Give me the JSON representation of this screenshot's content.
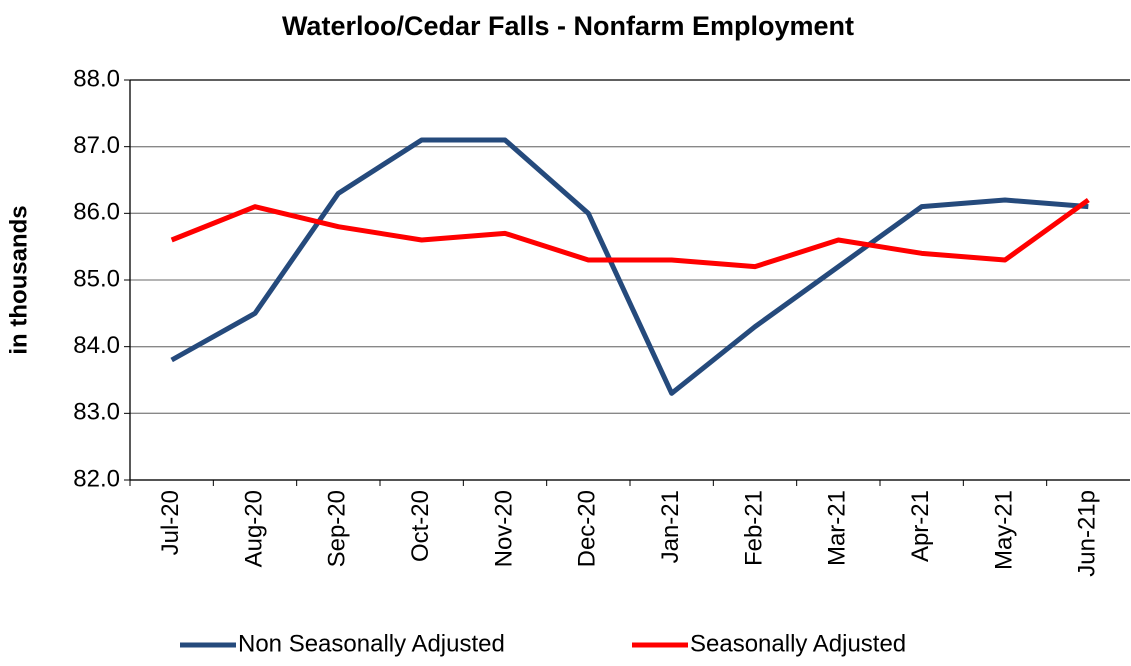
{
  "chart_data": {
    "type": "line",
    "title": "Waterloo/Cedar Falls - Nonfarm Employment",
    "y_label": "in thousands",
    "categories": [
      "Jul-20",
      "Aug-20",
      "Sep-20",
      "Oct-20",
      "Nov-20",
      "Dec-20",
      "Jan-21",
      "Feb-21",
      "Mar-21",
      "Apr-21",
      "May-21",
      "Jun-21p"
    ],
    "series": [
      {
        "name": "Non Seasonally Adjusted",
        "color": "#254a7c",
        "values": [
          83.8,
          84.5,
          86.3,
          87.1,
          87.1,
          86.0,
          83.3,
          84.3,
          85.2,
          86.1,
          86.2,
          86.1
        ]
      },
      {
        "name": "Seasonally Adjusted",
        "color": "#ff0000",
        "values": [
          85.6,
          86.1,
          85.8,
          85.6,
          85.7,
          85.3,
          85.3,
          85.2,
          85.6,
          85.4,
          85.3,
          86.2
        ]
      }
    ],
    "ylim": [
      82,
      88
    ],
    "yticks": [
      {
        "value": 82,
        "label": "82.0"
      },
      {
        "value": 83,
        "label": "83.0"
      },
      {
        "value": 84,
        "label": "84.0"
      },
      {
        "value": 85,
        "label": "85.0"
      },
      {
        "value": 86,
        "label": "86.0"
      },
      {
        "value": 87,
        "label": "87.0"
      },
      {
        "value": 88,
        "label": "88.0"
      }
    ],
    "grid": true,
    "legend": "bottom"
  }
}
